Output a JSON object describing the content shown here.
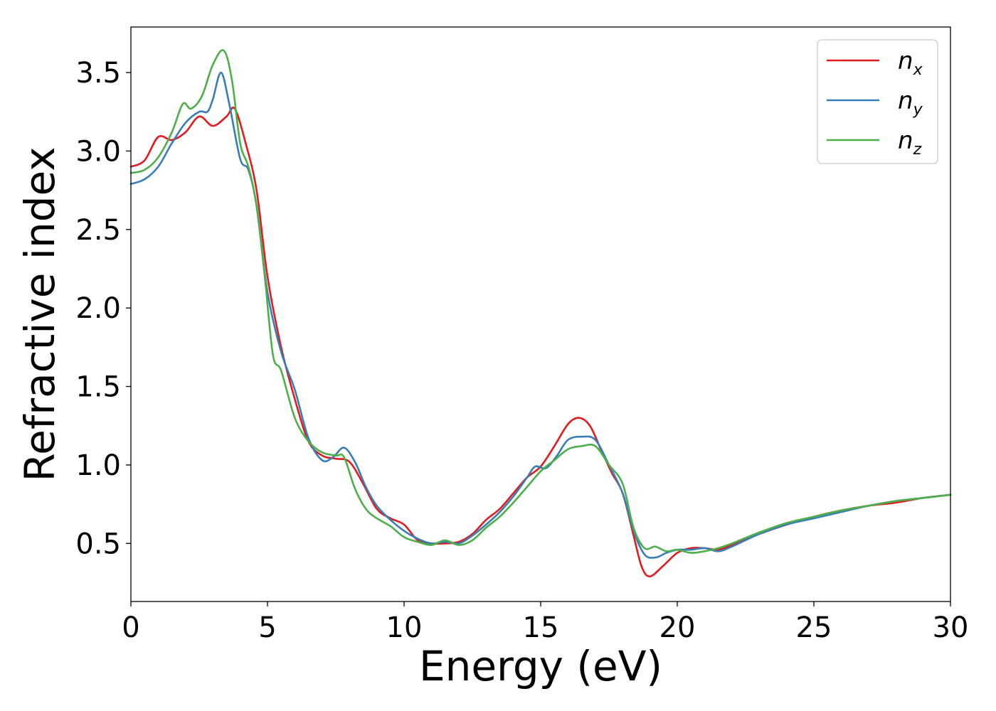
{
  "chart_data": {
    "type": "line",
    "xlabel": "Energy (eV)",
    "ylabel": "Refractive index",
    "xlim": [
      0,
      30
    ],
    "ylim": [
      0.13,
      3.79
    ],
    "xticks": [
      "0",
      "5",
      "10",
      "15",
      "20",
      "25",
      "30"
    ],
    "yticks": [
      "0.5",
      "1.0",
      "1.5",
      "2.0",
      "2.5",
      "3.0",
      "3.5"
    ],
    "grid": false,
    "legend_position": "top-right",
    "series": [
      {
        "name": "n",
        "subscript": "x",
        "color": "#e41a1c",
        "x": [
          0,
          0.5,
          1.0,
          1.5,
          2.0,
          2.5,
          3.0,
          3.5,
          3.8,
          4.2,
          4.6,
          5.0,
          5.5,
          6.0,
          6.5,
          7.0,
          7.5,
          8.0,
          8.5,
          9.0,
          9.5,
          10.0,
          10.5,
          11.0,
          11.5,
          12.0,
          12.5,
          13.0,
          13.5,
          14.0,
          14.5,
          15.0,
          15.5,
          16.0,
          16.4,
          16.8,
          17.2,
          17.6,
          18.0,
          18.4,
          18.7,
          19.0,
          19.5,
          20.0,
          20.5,
          21.0,
          21.5,
          22.0,
          23.0,
          24.0,
          25.0,
          26.0,
          27.0,
          28.0,
          29.0,
          30.0
        ],
        "y": [
          2.9,
          2.94,
          3.09,
          3.07,
          3.12,
          3.22,
          3.16,
          3.22,
          3.27,
          3.05,
          2.75,
          2.2,
          1.75,
          1.42,
          1.15,
          1.06,
          1.04,
          1.02,
          0.88,
          0.72,
          0.66,
          0.62,
          0.52,
          0.5,
          0.5,
          0.51,
          0.56,
          0.65,
          0.72,
          0.82,
          0.92,
          0.99,
          1.12,
          1.26,
          1.3,
          1.25,
          1.1,
          0.95,
          0.82,
          0.55,
          0.35,
          0.29,
          0.36,
          0.44,
          0.47,
          0.47,
          0.46,
          0.49,
          0.56,
          0.62,
          0.67,
          0.71,
          0.74,
          0.76,
          0.79,
          0.81
        ]
      },
      {
        "name": "n",
        "subscript": "y",
        "color": "#377eb8",
        "x": [
          0,
          0.5,
          1.0,
          1.5,
          2.0,
          2.5,
          2.8,
          3.0,
          3.3,
          3.6,
          4.0,
          4.3,
          4.6,
          5.0,
          5.5,
          6.0,
          6.5,
          7.0,
          7.4,
          7.8,
          8.2,
          8.6,
          9.0,
          9.5,
          10.0,
          10.5,
          11.0,
          11.5,
          12.0,
          12.5,
          13.0,
          13.5,
          14.0,
          14.5,
          14.8,
          15.2,
          15.6,
          16.0,
          16.5,
          17.0,
          17.5,
          18.0,
          18.4,
          18.8,
          19.2,
          19.6,
          20.0,
          20.5,
          21.0,
          21.5,
          22.0,
          23.0,
          24.0,
          25.0,
          26.0,
          27.0,
          28.0,
          29.0,
          30.0
        ],
        "y": [
          2.79,
          2.82,
          2.9,
          3.05,
          3.18,
          3.25,
          3.25,
          3.33,
          3.5,
          3.3,
          2.95,
          2.88,
          2.65,
          2.1,
          1.72,
          1.48,
          1.17,
          1.03,
          1.05,
          1.11,
          1.02,
          0.86,
          0.74,
          0.65,
          0.58,
          0.53,
          0.5,
          0.51,
          0.5,
          0.55,
          0.62,
          0.7,
          0.8,
          0.92,
          0.99,
          0.98,
          1.06,
          1.16,
          1.18,
          1.16,
          1.0,
          0.82,
          0.58,
          0.43,
          0.41,
          0.44,
          0.46,
          0.46,
          0.47,
          0.45,
          0.48,
          0.56,
          0.62,
          0.66,
          0.7,
          0.74,
          0.77,
          0.79,
          0.81
        ]
      },
      {
        "name": "n",
        "subscript": "z",
        "color": "#4daf4a",
        "x": [
          0,
          0.5,
          1.0,
          1.5,
          1.9,
          2.2,
          2.6,
          3.0,
          3.4,
          3.7,
          4.0,
          4.3,
          4.6,
          4.9,
          5.2,
          5.5,
          6.0,
          6.5,
          7.0,
          7.5,
          7.8,
          8.2,
          8.6,
          9.0,
          9.5,
          10.0,
          10.5,
          11.0,
          11.5,
          12.0,
          12.5,
          13.0,
          13.5,
          14.0,
          14.5,
          15.0,
          15.5,
          16.0,
          16.5,
          17.0,
          17.5,
          18.0,
          18.4,
          18.8,
          19.2,
          19.6,
          20.0,
          20.5,
          21.0,
          21.5,
          22.0,
          23.0,
          24.0,
          25.0,
          26.0,
          27.0,
          28.0,
          29.0,
          30.0
        ],
        "y": [
          2.86,
          2.88,
          2.96,
          3.12,
          3.3,
          3.27,
          3.35,
          3.55,
          3.64,
          3.45,
          3.05,
          2.9,
          2.65,
          2.2,
          1.7,
          1.6,
          1.3,
          1.15,
          1.08,
          1.06,
          1.05,
          0.85,
          0.72,
          0.66,
          0.61,
          0.54,
          0.51,
          0.49,
          0.52,
          0.49,
          0.52,
          0.6,
          0.67,
          0.76,
          0.86,
          0.96,
          1.03,
          1.1,
          1.12,
          1.12,
          1.0,
          0.88,
          0.6,
          0.47,
          0.48,
          0.45,
          0.46,
          0.44,
          0.45,
          0.47,
          0.5,
          0.57,
          0.63,
          0.67,
          0.71,
          0.74,
          0.77,
          0.79,
          0.81
        ]
      }
    ]
  }
}
